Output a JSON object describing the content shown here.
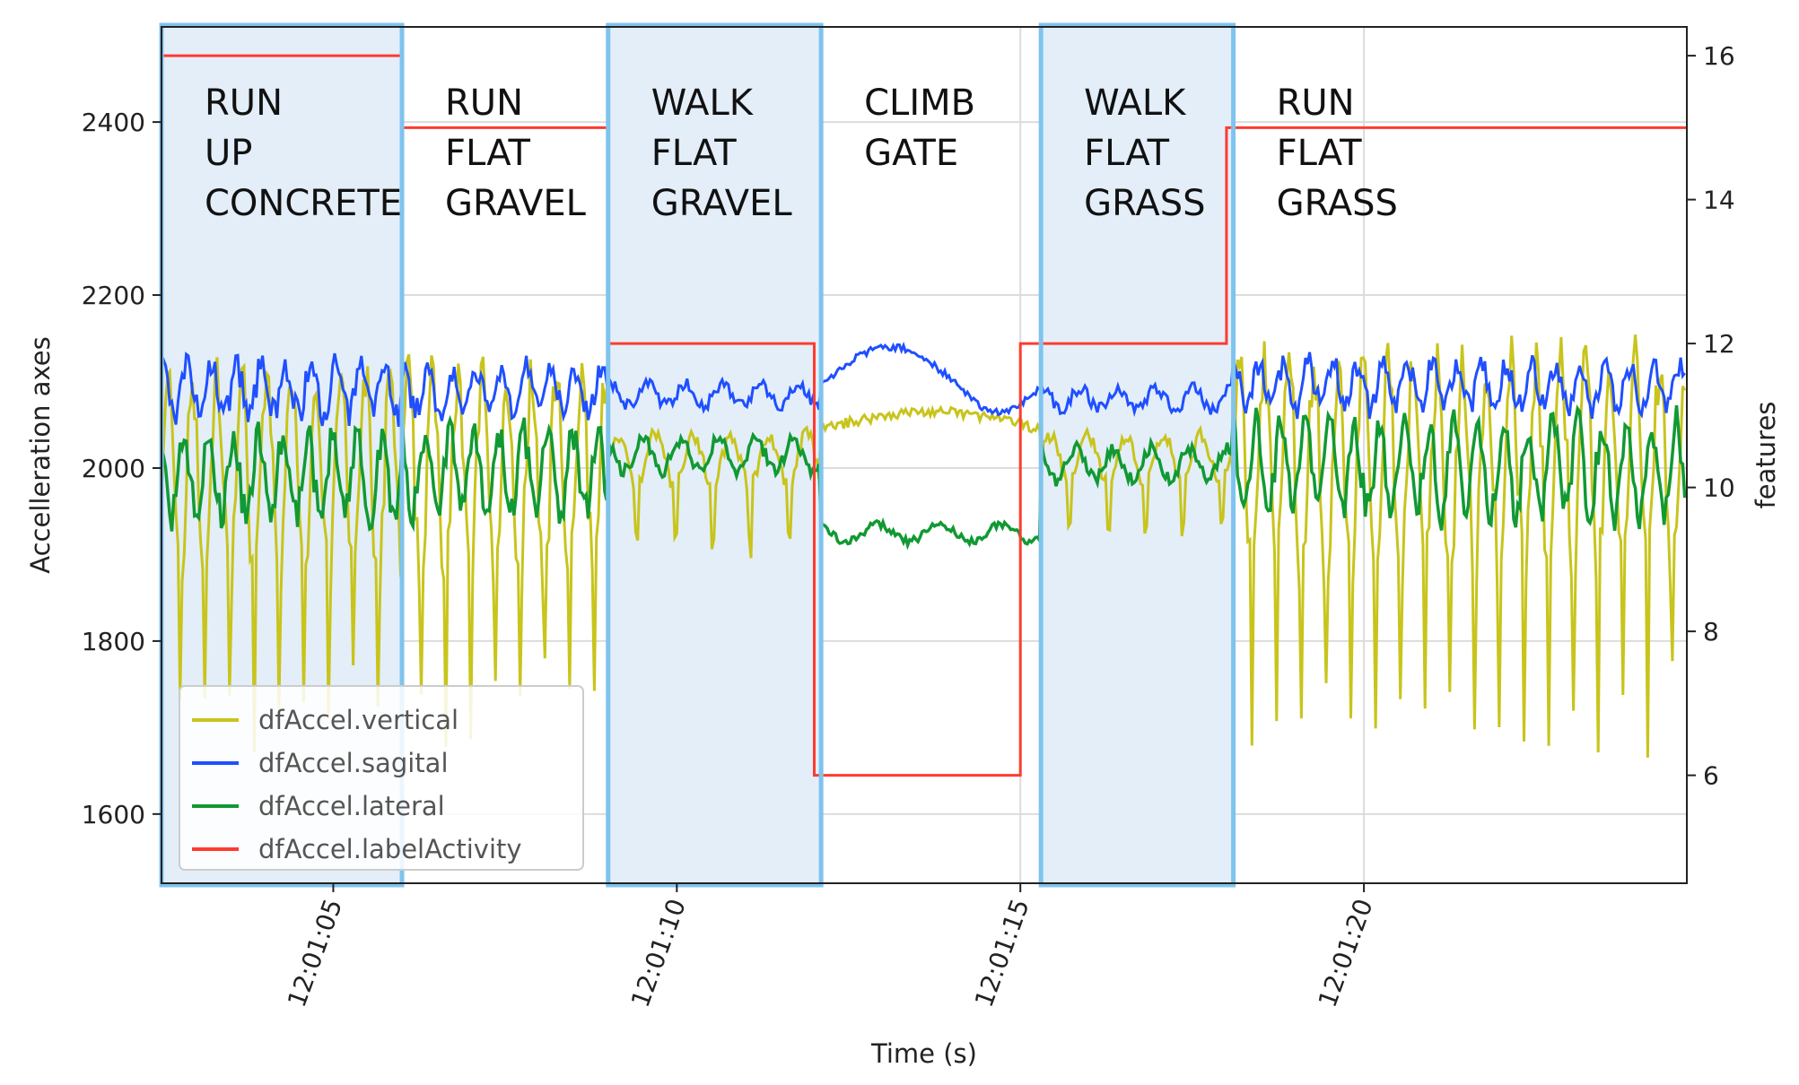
{
  "chart_data": {
    "type": "line",
    "title": "",
    "xlabel": "Time (s)",
    "ylabel_left": "Accelleration axes",
    "ylabel_right": "features",
    "xlim": [
      62.5,
      84.7
    ],
    "ylim_left": [
      1520,
      2510
    ],
    "ylim_right": [
      4.5,
      16.4
    ],
    "grid": true,
    "x_ticks": [
      {
        "value": 65,
        "label": "12:01:05"
      },
      {
        "value": 70,
        "label": "12:01:10"
      },
      {
        "value": 75,
        "label": "12:01:15"
      },
      {
        "value": 80,
        "label": "12:01:20"
      }
    ],
    "y_ticks_left": [
      1600,
      1800,
      2000,
      2200,
      2400
    ],
    "y_ticks_right": [
      6,
      8,
      10,
      12,
      14,
      16
    ],
    "legend": {
      "location": "lower-left",
      "entries": [
        {
          "label": "dfAccel.vertical",
          "color": "#c8c41c"
        },
        {
          "label": "dfAccel.sagital",
          "color": "#1f4fff"
        },
        {
          "label": "dfAccel.lateral",
          "color": "#119933"
        },
        {
          "label": "dfAccel.labelActivity",
          "color": "#ff3b30"
        }
      ]
    },
    "highlight_color": "#7fc3ee",
    "highlight_fill": "#e3eef9",
    "regions": [
      {
        "start": 62.5,
        "end": 66.0,
        "highlighted": true,
        "lines": [
          "RUN",
          "UP",
          "CONCRETE"
        ]
      },
      {
        "start": 66.0,
        "end": 69.0,
        "highlighted": false,
        "lines": [
          "RUN",
          "FLAT",
          "GRAVEL"
        ]
      },
      {
        "start": 69.0,
        "end": 72.1,
        "highlighted": true,
        "lines": [
          "WALK",
          "FLAT",
          "GRAVEL"
        ]
      },
      {
        "start": 72.1,
        "end": 75.3,
        "highlighted": false,
        "lines": [
          "CLIMB",
          "GATE"
        ]
      },
      {
        "start": 75.3,
        "end": 78.1,
        "highlighted": true,
        "lines": [
          "WALK",
          "FLAT",
          "GRASS"
        ]
      },
      {
        "start": 78.1,
        "end": 84.7,
        "highlighted": false,
        "lines": [
          "RUN",
          "FLAT",
          "GRASS"
        ]
      }
    ],
    "label_activity_steps": [
      {
        "x": 62.5,
        "y": 16.0
      },
      {
        "x": 66.0,
        "y": 15.0
      },
      {
        "x": 69.0,
        "y": 12.0
      },
      {
        "x": 72.0,
        "y": 6.0
      },
      {
        "x": 75.0,
        "y": 12.0
      },
      {
        "x": 78.0,
        "y": 15.0
      },
      {
        "x": 84.7,
        "y": 15.0
      }
    ],
    "series_profile": [
      {
        "start": 62.5,
        "end": 66.0,
        "period": 0.36,
        "vertical_mean": 1985,
        "vertical_amp": 120,
        "vertical_dip": 175,
        "sagital_mean": 2090,
        "sagital_amp": 28,
        "lateral_mean": 1990,
        "lateral_amp": 45
      },
      {
        "start": 66.0,
        "end": 69.0,
        "period": 0.36,
        "vertical_mean": 1990,
        "vertical_amp": 115,
        "vertical_dip": 170,
        "sagital_mean": 2090,
        "sagital_amp": 25,
        "lateral_mean": 1995,
        "lateral_amp": 45
      },
      {
        "start": 69.0,
        "end": 72.1,
        "period": 0.55,
        "vertical_mean": 2010,
        "vertical_amp": 30,
        "vertical_dip": 70,
        "sagital_mean": 2085,
        "sagital_amp": 12,
        "lateral_mean": 2015,
        "lateral_amp": 18
      },
      {
        "start": 72.1,
        "end": 75.3,
        "period": 0.9,
        "vertical_mean": 2050,
        "vertical_amp": 10,
        "vertical_dip": 0,
        "sagital_mean": 2090,
        "sagital_amp": 6,
        "lateral_mean": 1925,
        "lateral_amp": 10
      },
      {
        "start": 75.3,
        "end": 78.1,
        "period": 0.55,
        "vertical_mean": 2010,
        "vertical_amp": 28,
        "vertical_dip": 60,
        "sagital_mean": 2080,
        "sagital_amp": 12,
        "lateral_mean": 2005,
        "lateral_amp": 18
      },
      {
        "start": 78.1,
        "end": 84.7,
        "period": 0.36,
        "vertical_mean": 2000,
        "vertical_amp": 120,
        "vertical_dip": 200,
        "sagital_mean": 2095,
        "sagital_amp": 25,
        "lateral_mean": 2000,
        "lateral_amp": 50
      }
    ]
  }
}
